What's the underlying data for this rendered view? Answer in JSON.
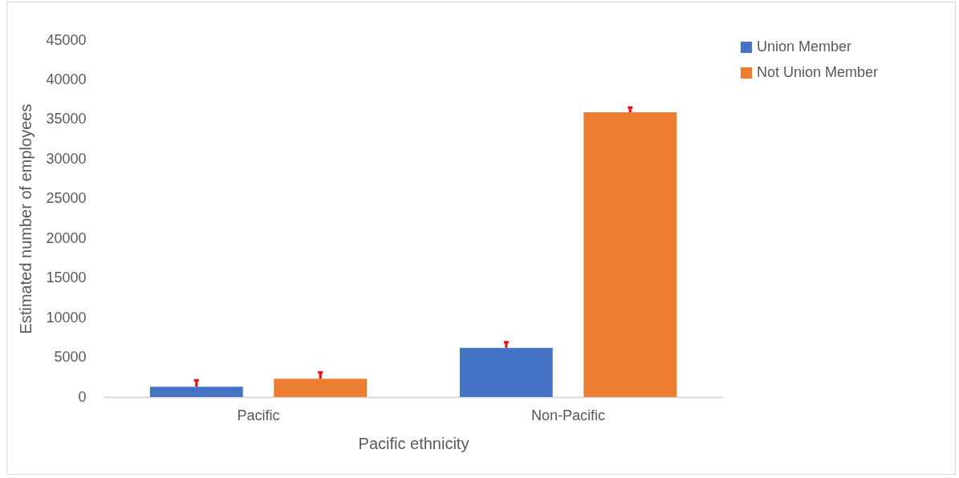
{
  "chart_data": {
    "type": "bar",
    "xlabel": "Pacific ethnicity",
    "ylabel": "Estimated number of employees",
    "categories": [
      "Pacific",
      "Non-Pacific"
    ],
    "series": [
      {
        "name": "Union Member",
        "color": "#4472c4",
        "values": [
          1300,
          6200
        ],
        "errors": [
          [
            1300,
            2100
          ],
          [
            6200,
            6900
          ]
        ]
      },
      {
        "name": "Not Union Member",
        "color": "#ed7d31",
        "values": [
          2300,
          35900
        ],
        "errors": [
          [
            2300,
            3100
          ],
          [
            35900,
            36500
          ]
        ]
      }
    ],
    "ylim": [
      0,
      45000
    ],
    "yticks": [
      0,
      5000,
      10000,
      15000,
      20000,
      25000,
      30000,
      35000,
      40000,
      45000
    ],
    "grid": false,
    "legend": "right"
  }
}
